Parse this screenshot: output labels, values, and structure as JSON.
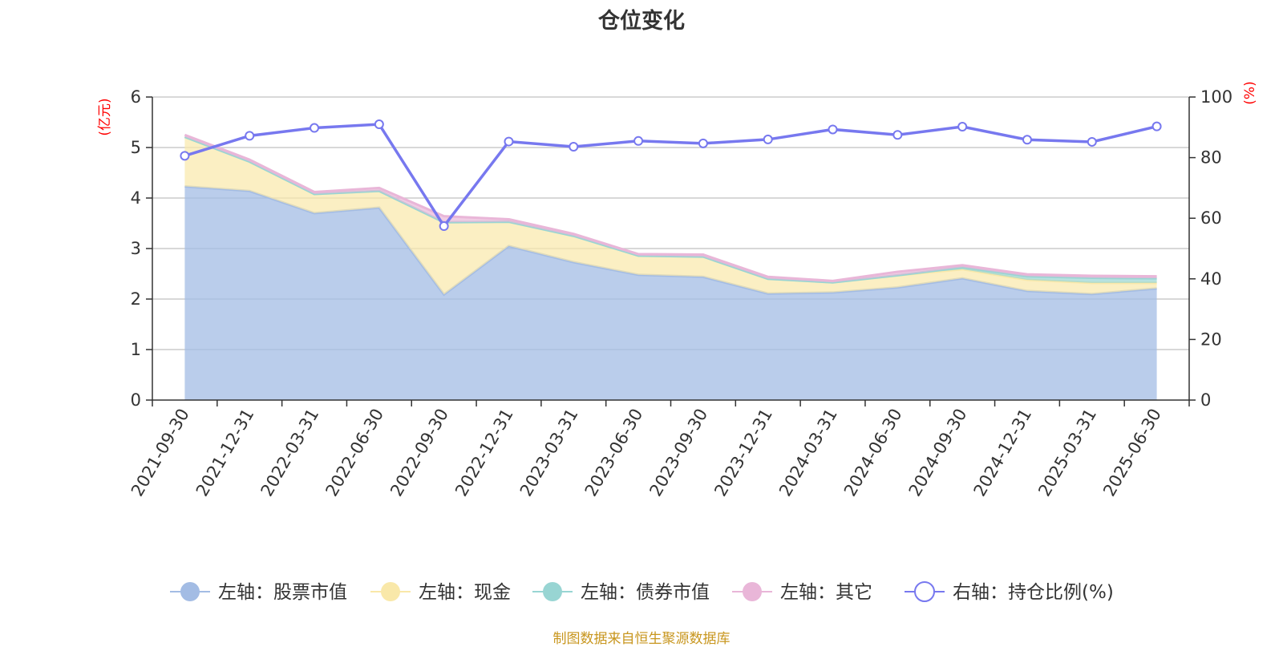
{
  "chart_data": {
    "type": "area",
    "title": "仓位变化",
    "source": "制图数据来自恒生聚源数据库",
    "y_left": {
      "label": "(亿元)",
      "range": [
        0,
        6
      ],
      "ticks": [
        "0",
        "1",
        "2",
        "3",
        "4",
        "5",
        "6"
      ]
    },
    "y_right": {
      "label": "(%)",
      "range": [
        0,
        100
      ],
      "ticks": [
        "0",
        "20",
        "40",
        "60",
        "80",
        "100"
      ]
    },
    "grid": true,
    "legend_position": "bottom",
    "categories": [
      "2021-09-30",
      "2021-12-31",
      "2022-03-31",
      "2022-06-30",
      "2022-09-30",
      "2022-12-31",
      "2023-03-31",
      "2023-06-30",
      "2023-09-30",
      "2023-12-31",
      "2024-03-31",
      "2024-06-30",
      "2024-09-30",
      "2024-12-31",
      "2025-03-31",
      "2025-06-30"
    ],
    "series": [
      {
        "name": "左轴：股票市值",
        "axis": "left",
        "kind": "stacked-area",
        "color": "#a3bce4",
        "values": [
          4.23,
          4.14,
          3.7,
          3.81,
          2.09,
          3.05,
          2.73,
          2.48,
          2.44,
          2.11,
          2.13,
          2.23,
          2.41,
          2.16,
          2.1,
          2.21
        ]
      },
      {
        "name": "左轴：现金",
        "axis": "left",
        "kind": "stacked-area",
        "color": "#f9e8a9",
        "values": [
          0.98,
          0.58,
          0.38,
          0.33,
          1.43,
          0.48,
          0.52,
          0.38,
          0.4,
          0.29,
          0.2,
          0.24,
          0.18,
          0.22,
          0.22,
          0.11
        ]
      },
      {
        "name": "左轴：债券市值",
        "axis": "left",
        "kind": "stacked-area",
        "color": "#98d5d3",
        "values": [
          0,
          0,
          0,
          0,
          0,
          0,
          0,
          0,
          0,
          0,
          0,
          0,
          0.04,
          0.07,
          0.1,
          0.09
        ]
      },
      {
        "name": "左轴：其它",
        "axis": "left",
        "kind": "stacked-area",
        "color": "#e9b6d8",
        "values": [
          0.04,
          0.04,
          0.04,
          0.06,
          0.12,
          0.05,
          0.04,
          0.03,
          0.04,
          0.04,
          0.03,
          0.07,
          0.04,
          0.04,
          0.04,
          0.04
        ]
      },
      {
        "name": "右轴：持仓比例(%)",
        "axis": "right",
        "kind": "line",
        "color": "#7778ef",
        "values": [
          80.6,
          87.2,
          89.8,
          91.0,
          57.4,
          85.3,
          83.6,
          85.5,
          84.7,
          86.0,
          89.3,
          87.5,
          90.2,
          85.9,
          85.2,
          90.3
        ]
      }
    ]
  }
}
